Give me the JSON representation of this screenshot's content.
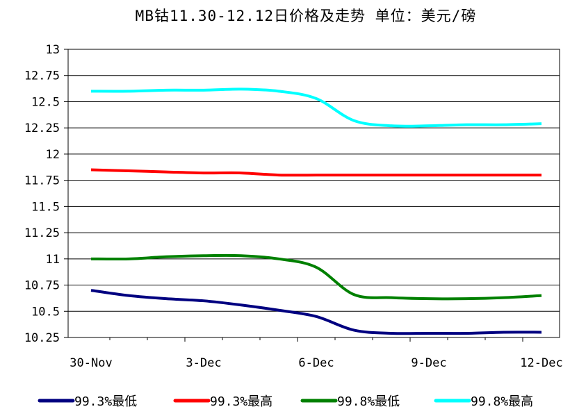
{
  "chart_data": {
    "type": "line",
    "title": "MB钴11.30-12.12日价格及走势 单位：美元/磅",
    "xlabel": "",
    "ylabel": "",
    "x_ticks": [
      "30-Nov",
      "3-Dec",
      "6-Dec",
      "9-Dec",
      "12-Dec"
    ],
    "y_ticks": [
      "13",
      "12.75",
      "12.5",
      "12.25",
      "12",
      "11.75",
      "11.5",
      "11.25",
      "11",
      "10.75",
      "10.5",
      "10.25"
    ],
    "ylim": [
      10.25,
      13
    ],
    "grid": true,
    "legend_position": "bottom",
    "x": [
      "30-Nov",
      "1-Dec",
      "2-Dec",
      "3-Dec",
      "4-Dec",
      "5-Dec",
      "6-Dec",
      "7-Dec",
      "8-Dec",
      "9-Dec",
      "10-Dec",
      "11-Dec",
      "12-Dec"
    ],
    "series": [
      {
        "name": "99.3%最低",
        "color": "#000080",
        "values": [
          10.7,
          10.65,
          10.62,
          10.6,
          10.56,
          10.51,
          10.45,
          10.32,
          10.29,
          10.29,
          10.29,
          10.3,
          10.3
        ]
      },
      {
        "name": "99.3%最高",
        "color": "#ff0000",
        "values": [
          11.85,
          11.84,
          11.83,
          11.82,
          11.82,
          11.8,
          11.8,
          11.8,
          11.8,
          11.8,
          11.8,
          11.8,
          11.8
        ]
      },
      {
        "name": "99.8%最低",
        "color": "#008000",
        "values": [
          11.0,
          11.0,
          11.02,
          11.03,
          11.03,
          11.0,
          10.92,
          10.66,
          10.63,
          10.62,
          10.62,
          10.63,
          10.65
        ]
      },
      {
        "name": "99.8%最高",
        "color": "#00ffff",
        "values": [
          12.6,
          12.6,
          12.61,
          12.61,
          12.62,
          12.6,
          12.53,
          12.32,
          12.27,
          12.27,
          12.28,
          12.28,
          12.29
        ]
      }
    ]
  }
}
